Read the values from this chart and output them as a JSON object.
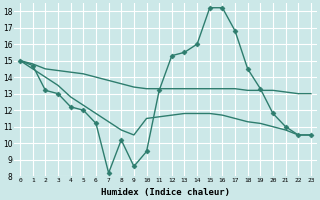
{
  "xlabel": "Humidex (Indice chaleur)",
  "bg_color": "#cce8e8",
  "grid_color": "#ffffff",
  "line_color": "#2e7d6e",
  "xlim": [
    -0.5,
    23.5
  ],
  "ylim": [
    8,
    18.5
  ],
  "yticks": [
    8,
    9,
    10,
    11,
    12,
    13,
    14,
    15,
    16,
    17,
    18
  ],
  "xticks": [
    0,
    1,
    2,
    3,
    4,
    5,
    6,
    7,
    8,
    9,
    10,
    11,
    12,
    13,
    14,
    15,
    16,
    17,
    18,
    19,
    20,
    21,
    22,
    23
  ],
  "lines": [
    {
      "x": [
        0,
        1,
        2,
        3,
        4,
        5,
        6,
        7,
        8,
        9,
        10,
        11,
        12,
        13,
        14,
        15,
        16,
        17,
        18,
        19,
        20,
        21,
        22,
        23
      ],
      "y": [
        15,
        14.8,
        14.5,
        14.4,
        14.3,
        14.2,
        14.0,
        13.8,
        13.6,
        13.4,
        13.3,
        13.3,
        13.3,
        13.3,
        13.3,
        13.3,
        13.3,
        13.3,
        13.2,
        13.2,
        13.2,
        13.1,
        13.0,
        13.0
      ],
      "marker": false,
      "lw": 1.0
    },
    {
      "x": [
        0,
        1,
        2,
        3,
        4,
        5,
        6,
        7,
        8,
        9,
        10,
        11,
        12,
        13,
        14,
        15,
        16,
        17,
        18,
        19,
        20,
        21,
        22,
        23
      ],
      "y": [
        15,
        14.5,
        14.0,
        13.5,
        12.8,
        12.3,
        11.8,
        11.3,
        10.8,
        10.5,
        11.5,
        11.6,
        11.7,
        11.8,
        11.8,
        11.8,
        11.7,
        11.5,
        11.3,
        11.2,
        11.0,
        10.8,
        10.5,
        10.5
      ],
      "marker": false,
      "lw": 1.0
    },
    {
      "x": [
        0,
        1,
        2,
        3,
        4,
        5,
        6,
        7,
        8,
        9,
        10,
        11,
        12,
        13,
        14,
        15,
        16,
        17,
        18,
        19,
        20,
        21,
        22,
        23
      ],
      "y": [
        15,
        14.7,
        13.2,
        13.0,
        12.2,
        12.0,
        11.2,
        8.2,
        10.2,
        8.6,
        9.5,
        13.2,
        15.3,
        15.5,
        16.0,
        18.2,
        18.2,
        16.8,
        14.5,
        13.3,
        11.8,
        11.0,
        10.5,
        10.5
      ],
      "marker": true,
      "lw": 1.0
    }
  ]
}
